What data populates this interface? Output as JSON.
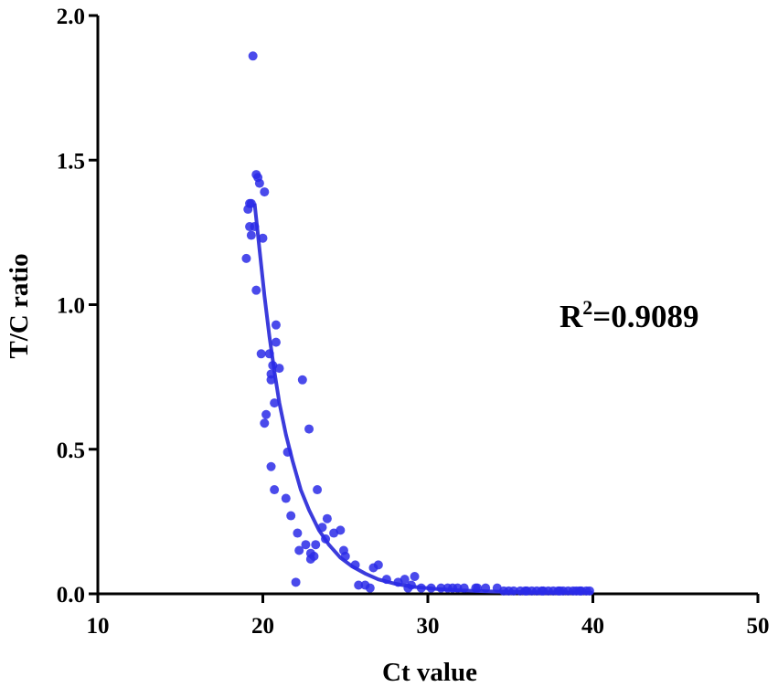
{
  "chart_data": {
    "type": "scatter",
    "xlabel": "Ct value",
    "ylabel": "T/C ratio",
    "xlim": [
      10,
      50
    ],
    "ylim": [
      0,
      2.0
    ],
    "x_ticks": [
      "10",
      "20",
      "30",
      "40",
      "50"
    ],
    "y_ticks": [
      "0.0",
      "0.5",
      "1.0",
      "1.5",
      "2.0"
    ],
    "x_tick_values": [
      10,
      20,
      30,
      40,
      50
    ],
    "y_tick_values": [
      0,
      0.5,
      1.0,
      1.5,
      2.0
    ],
    "grid": false,
    "annotation": {
      "base": "R",
      "sup": "2",
      "rest": "=0.9089"
    },
    "colors": {
      "points": "#2a2ae8",
      "fit": "#3b3bdc",
      "axis": "#000000"
    },
    "fit_curve": {
      "x": [
        19.5,
        19.8,
        20.1,
        20.4,
        20.7,
        21.0,
        21.4,
        21.8,
        22.3,
        22.8,
        23.4,
        24.0,
        24.7,
        25.4,
        26.2,
        27.0,
        28.0,
        29.0,
        30.5,
        32.0,
        34.0,
        36.0,
        38.0,
        40.0
      ],
      "y": [
        1.35,
        1.19,
        1.03,
        0.89,
        0.77,
        0.66,
        0.55,
        0.46,
        0.36,
        0.29,
        0.22,
        0.17,
        0.125,
        0.095,
        0.07,
        0.05,
        0.035,
        0.025,
        0.017,
        0.012,
        0.008,
        0.006,
        0.005,
        0.004
      ]
    },
    "points": [
      [
        19.4,
        1.86
      ],
      [
        19.6,
        1.45
      ],
      [
        19.7,
        1.44
      ],
      [
        19.8,
        1.42
      ],
      [
        20.1,
        1.39
      ],
      [
        19.2,
        1.35
      ],
      [
        19.3,
        1.35
      ],
      [
        19.1,
        1.33
      ],
      [
        19.2,
        1.27
      ],
      [
        19.5,
        1.27
      ],
      [
        19.3,
        1.24
      ],
      [
        20.0,
        1.23
      ],
      [
        19.0,
        1.16
      ],
      [
        19.6,
        1.05
      ],
      [
        20.8,
        0.93
      ],
      [
        20.8,
        0.87
      ],
      [
        19.9,
        0.83
      ],
      [
        20.4,
        0.83
      ],
      [
        20.6,
        0.79
      ],
      [
        20.5,
        0.76
      ],
      [
        21.0,
        0.78
      ],
      [
        20.5,
        0.74
      ],
      [
        22.4,
        0.74
      ],
      [
        20.7,
        0.66
      ],
      [
        20.2,
        0.62
      ],
      [
        20.1,
        0.59
      ],
      [
        22.8,
        0.57
      ],
      [
        21.5,
        0.49
      ],
      [
        20.5,
        0.44
      ],
      [
        20.7,
        0.36
      ],
      [
        23.3,
        0.36
      ],
      [
        21.4,
        0.33
      ],
      [
        21.7,
        0.27
      ],
      [
        23.9,
        0.26
      ],
      [
        23.6,
        0.23
      ],
      [
        24.3,
        0.21
      ],
      [
        24.7,
        0.22
      ],
      [
        22.1,
        0.21
      ],
      [
        23.8,
        0.19
      ],
      [
        22.6,
        0.17
      ],
      [
        23.2,
        0.17
      ],
      [
        22.2,
        0.15
      ],
      [
        22.9,
        0.14
      ],
      [
        23.1,
        0.13
      ],
      [
        22.9,
        0.12
      ],
      [
        24.9,
        0.15
      ],
      [
        25.0,
        0.13
      ],
      [
        25.6,
        0.1
      ],
      [
        26.7,
        0.09
      ],
      [
        27.0,
        0.1
      ],
      [
        27.5,
        0.05
      ],
      [
        28.2,
        0.04
      ],
      [
        28.6,
        0.05
      ],
      [
        29.2,
        0.06
      ],
      [
        29.0,
        0.03
      ],
      [
        26.2,
        0.03
      ],
      [
        26.5,
        0.02
      ],
      [
        25.8,
        0.03
      ],
      [
        22.0,
        0.04
      ],
      [
        30.8,
        0.02
      ],
      [
        31.2,
        0.02
      ],
      [
        31.8,
        0.02
      ],
      [
        32.2,
        0.02
      ],
      [
        32.9,
        0.02
      ],
      [
        33.5,
        0.02
      ],
      [
        34.2,
        0.02
      ],
      [
        34.6,
        0.01
      ],
      [
        35.2,
        0.01
      ],
      [
        35.6,
        0.01
      ],
      [
        36.0,
        0.01
      ],
      [
        36.3,
        0.01
      ],
      [
        36.6,
        0.01
      ],
      [
        37.0,
        0.01
      ],
      [
        37.3,
        0.01
      ],
      [
        37.6,
        0.01
      ],
      [
        37.9,
        0.01
      ],
      [
        38.2,
        0.01
      ],
      [
        38.5,
        0.01
      ],
      [
        38.8,
        0.01
      ],
      [
        39.0,
        0.01
      ],
      [
        39.3,
        0.01
      ],
      [
        39.6,
        0.01
      ],
      [
        39.8,
        0.01
      ],
      [
        31.5,
        0.02
      ],
      [
        33.0,
        0.02
      ],
      [
        34.9,
        0.01
      ],
      [
        35.9,
        0.01
      ],
      [
        36.9,
        0.01
      ],
      [
        38.0,
        0.01
      ],
      [
        39.2,
        0.01
      ],
      [
        30.2,
        0.02
      ],
      [
        29.6,
        0.02
      ],
      [
        28.8,
        0.02
      ]
    ]
  }
}
